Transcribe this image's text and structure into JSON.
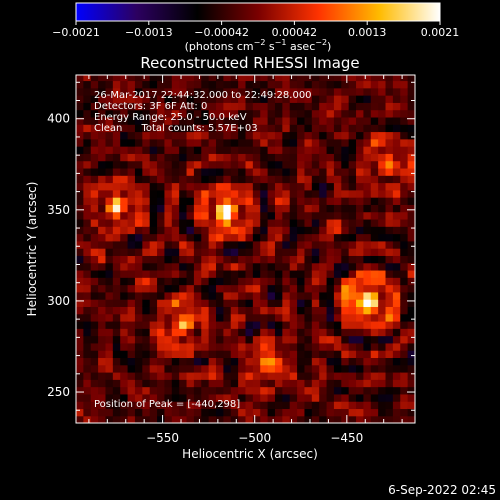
{
  "chart_data": {
    "type": "heatmap",
    "title": "Reconstructed RHESSI Image",
    "xlabel": "Heliocentric X (arcsec)",
    "ylabel": "Heliocentric Y (arcsec)",
    "xlim": [
      -597,
      -413
    ],
    "ylim": [
      233,
      424
    ],
    "x_ticks": [
      {
        "value": -550,
        "label": "−550"
      },
      {
        "value": -500,
        "label": "−500"
      },
      {
        "value": -450,
        "label": "−450"
      }
    ],
    "y_ticks": [
      {
        "value": 250,
        "label": "250"
      },
      {
        "value": 300,
        "label": "300"
      },
      {
        "value": 350,
        "label": "350"
      },
      {
        "value": 400,
        "label": "400"
      }
    ],
    "colorbar": {
      "range": [
        -0.0021,
        0.0021
      ],
      "tick_labels": [
        "−0.0021",
        "−0.0013",
        "−0.00042",
        "0.00042",
        "0.0013",
        "0.0021"
      ],
      "unit_parts": [
        "(photons cm",
        "−2",
        " s",
        "−1",
        " asec",
        "−2",
        ")"
      ],
      "colors": [
        "#0000ff",
        "#2c0060",
        "#000000",
        "#7a0000",
        "#ff3300",
        "#ffbb00",
        "#ffffff"
      ]
    },
    "info_lines": [
      "26-Mar-2017 22:44:32.000 to 22:49:28.000",
      "Detectors: 3F 6F  Att: 0",
      "Energy Range: 25.0 - 50.0 keV",
      "Clean      Total counts: 5.57E+03"
    ],
    "peak_text": "Position of Peak = [-440,298]",
    "peak": {
      "x": -440,
      "y": 298
    },
    "sources": [
      {
        "x": -518,
        "y": 347,
        "intensity": 0.0017
      },
      {
        "x": -440,
        "y": 298,
        "intensity": 0.0021
      },
      {
        "x": -541,
        "y": 285,
        "intensity": 0.0013
      },
      {
        "x": -577,
        "y": 350,
        "intensity": 0.0012
      },
      {
        "x": -429,
        "y": 373,
        "intensity": 0.0011
      },
      {
        "x": -495,
        "y": 263,
        "intensity": 0.001
      }
    ],
    "grid": false
  },
  "footer_timestamp": "6-Sep-2022 02:45"
}
